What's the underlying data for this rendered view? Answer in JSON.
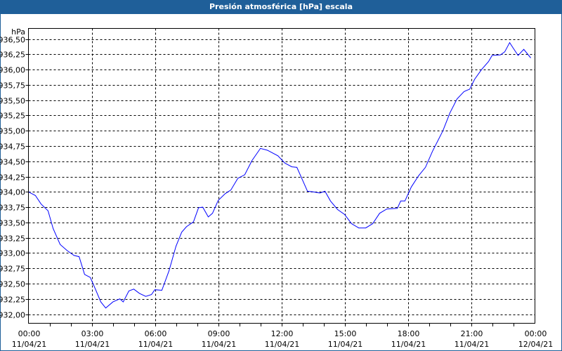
{
  "window": {
    "title": "Presión atmosférica [hPa] escala"
  },
  "chart_data": {
    "type": "line",
    "title": "Presión atmosférica [hPa] escala",
    "ylabel": "hPa",
    "xlabel": "",
    "ylim": [
      932.0,
      936.5
    ],
    "xlim_hours": [
      0,
      24
    ],
    "grid": true,
    "y_ticks": [
      {
        "value": 932.0,
        "label": "932,00"
      },
      {
        "value": 932.25,
        "label": "932,25"
      },
      {
        "value": 932.5,
        "label": "932,50"
      },
      {
        "value": 932.75,
        "label": "932,75"
      },
      {
        "value": 933.0,
        "label": "933,00"
      },
      {
        "value": 933.25,
        "label": "933,25"
      },
      {
        "value": 933.5,
        "label": "933,50"
      },
      {
        "value": 933.75,
        "label": "933,75"
      },
      {
        "value": 934.0,
        "label": "934,00"
      },
      {
        "value": 934.25,
        "label": "934,25"
      },
      {
        "value": 934.5,
        "label": "934,50"
      },
      {
        "value": 934.75,
        "label": "934,75"
      },
      {
        "value": 935.0,
        "label": "935,00"
      },
      {
        "value": 935.25,
        "label": "935,25"
      },
      {
        "value": 935.5,
        "label": "935,50"
      },
      {
        "value": 935.75,
        "label": "935,75"
      },
      {
        "value": 936.0,
        "label": "936,00"
      },
      {
        "value": 936.25,
        "label": "936,25"
      },
      {
        "value": 936.5,
        "label": "936,50"
      }
    ],
    "x_ticks": [
      {
        "hours": 0,
        "time": "00:00",
        "date": "11/04/21"
      },
      {
        "hours": 3,
        "time": "03:00",
        "date": "11/04/21"
      },
      {
        "hours": 6,
        "time": "06:00",
        "date": "11/04/21"
      },
      {
        "hours": 9,
        "time": "09:00",
        "date": "11/04/21"
      },
      {
        "hours": 12,
        "time": "12:00",
        "date": "11/04/21"
      },
      {
        "hours": 15,
        "time": "15:00",
        "date": "11/04/21"
      },
      {
        "hours": 18,
        "time": "18:00",
        "date": "11/04/21"
      },
      {
        "hours": 21,
        "time": "21:00",
        "date": "11/04/21"
      },
      {
        "hours": 24,
        "time": "00:00",
        "date": "12/04/21"
      }
    ],
    "series": [
      {
        "name": "Presión atmosférica",
        "color": "#0000ff",
        "x_hours": [
          0,
          0.33,
          0.6,
          0.93,
          1.17,
          1.5,
          1.83,
          2.16,
          2.4,
          2.66,
          2.93,
          3.16,
          3.43,
          3.66,
          4.0,
          4.33,
          4.49,
          4.76,
          4.99,
          5.26,
          5.56,
          5.83,
          5.99,
          6.32,
          6.66,
          6.99,
          7.26,
          7.49,
          7.82,
          8.06,
          8.26,
          8.52,
          8.72,
          8.99,
          9.32,
          9.59,
          9.92,
          10.25,
          10.59,
          10.99,
          11.32,
          11.82,
          12.15,
          12.48,
          12.72,
          12.98,
          13.22,
          13.48,
          13.81,
          14.05,
          14.31,
          14.65,
          14.98,
          15.31,
          15.65,
          15.98,
          16.31,
          16.64,
          16.98,
          17.48,
          17.64,
          17.84,
          18.14,
          18.48,
          18.81,
          19.14,
          19.64,
          19.97,
          20.31,
          20.64,
          20.91,
          21.14,
          21.47,
          21.8,
          21.97,
          22.37,
          22.57,
          22.8,
          22.97,
          23.2,
          23.47,
          23.8
        ],
        "values": [
          934.0,
          933.94,
          933.8,
          933.69,
          933.4,
          933.14,
          933.04,
          932.96,
          932.94,
          932.65,
          932.6,
          932.42,
          932.2,
          932.1,
          932.2,
          932.25,
          932.2,
          932.38,
          932.41,
          932.34,
          932.29,
          932.32,
          932.4,
          932.39,
          932.71,
          933.11,
          933.34,
          933.43,
          933.51,
          933.74,
          933.75,
          933.59,
          933.65,
          933.86,
          933.97,
          934.03,
          934.22,
          934.28,
          934.51,
          934.71,
          934.68,
          934.59,
          934.47,
          934.41,
          934.4,
          934.2,
          934.01,
          934.0,
          933.98,
          934.01,
          933.85,
          933.71,
          933.63,
          933.48,
          933.41,
          933.41,
          933.48,
          933.65,
          933.72,
          933.73,
          933.85,
          933.85,
          934.08,
          934.26,
          934.4,
          934.66,
          935.0,
          935.29,
          935.52,
          935.64,
          935.68,
          935.84,
          936.0,
          936.13,
          936.23,
          936.24,
          936.29,
          936.44,
          936.35,
          936.23,
          936.33,
          936.19
        ]
      }
    ]
  }
}
